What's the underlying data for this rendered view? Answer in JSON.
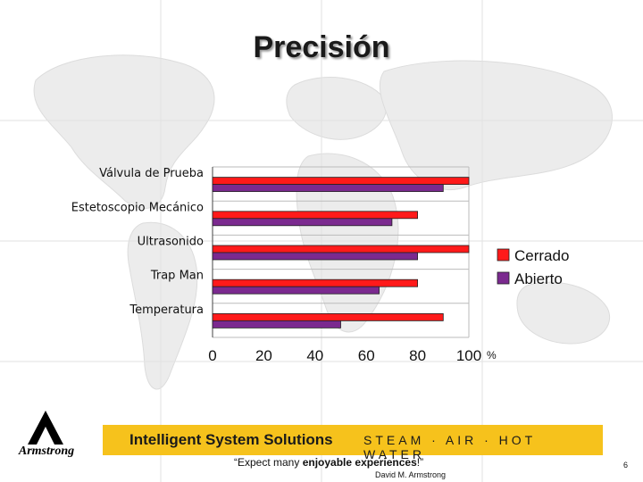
{
  "slide": {
    "title": "Precisión",
    "banner_left": "Intelligent System Solutions",
    "banner_right": "STEAM · AIR · HOT WATER",
    "quote_open": "“Expect many ",
    "quote_bold": "enjoyable experiences",
    "quote_close": "!”",
    "author": "David M. Armstrong",
    "page_number": "6",
    "logo_text": "Armstrong",
    "banner_color": "#f6c21c"
  },
  "chart_data": {
    "type": "bar",
    "orientation": "horizontal",
    "categories": [
      "Válvula de Prueba",
      "Estetoscopio Mecánico",
      "Ultrasonido",
      "Trap Man",
      "Temperatura"
    ],
    "series": [
      {
        "name": "Cerrado",
        "color": "#ff1a1a",
        "values": [
          100,
          80,
          100,
          80,
          90
        ]
      },
      {
        "name": "Abierto",
        "color": "#7b2a8f",
        "values": [
          90,
          70,
          80,
          65,
          50
        ]
      }
    ],
    "x_ticks": [
      "0",
      "20",
      "40",
      "60",
      "80",
      "100"
    ],
    "x_unit": "%",
    "xlim": [
      0,
      100
    ],
    "grid": true,
    "legend_position": "right"
  }
}
